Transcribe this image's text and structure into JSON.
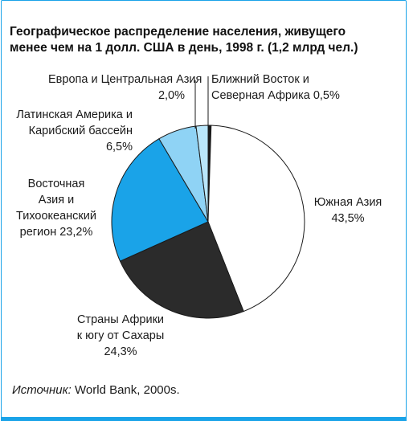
{
  "header": {
    "title_line1": "Географическое распределение населения, живущего",
    "title_line2": "менее чем на 1 долл. США в день, 1998 г. (1,2 млрд чел.)"
  },
  "chart_data": {
    "type": "pie",
    "title": "Географическое распределение населения, живущего менее чем на 1 долл. США в день, 1998 г. (1,2 млрд чел.)",
    "slices": [
      {
        "name": "Ближний Восток и Северная Африка",
        "value": 0.5,
        "display": "0,5%",
        "color": "#1a1a1a"
      },
      {
        "name": "Южная Азия",
        "value": 43.5,
        "display": "43,5%",
        "color": "#ffffff"
      },
      {
        "name": "Страны Африки к югу от Сахары",
        "value": 24.3,
        "display": "24,3%",
        "color": "#2b2b2b"
      },
      {
        "name": "Восточная Азия и Тихоокеанский регион",
        "value": 23.2,
        "display": "23,2%",
        "color": "#1aa3e8"
      },
      {
        "name": "Латинская Америка и Карибский бассейн",
        "value": 6.5,
        "display": "6,5%",
        "color": "#8fd3f5"
      },
      {
        "name": "Европа и Центральная Азия",
        "value": 2.0,
        "display": "2,0%",
        "color": "#b9e6fa"
      }
    ]
  },
  "labels": {
    "europe_l1": "Европа и Центральная Азия",
    "europe_val": "2,0%",
    "mena_l1": "Ближний Восток и",
    "mena_l2": "Северная Африка 0,5%",
    "latam_l1": "Латинская Америка и",
    "latam_l2": "Карибский бассейн",
    "latam_val": "6,5%",
    "eap_l1": "Восточная",
    "eap_l2": "Азия и",
    "eap_l3": "Тихоокеанский",
    "eap_l4": "регион  23,2%",
    "sasia_l1": "Южная Азия",
    "sasia_val": "43,5%",
    "ssa_l1": "Страны Африки",
    "ssa_l2": "к югу от Сахары",
    "ssa_val": "24,3%"
  },
  "footer": {
    "source_label": "Источник:",
    "source_text": " World Bank, 2000s."
  },
  "colors": {
    "accent": "#1aa3e8",
    "light_blue": "#8fd3f5",
    "pale_blue": "#b9e6fa",
    "dark": "#2b2b2b"
  }
}
